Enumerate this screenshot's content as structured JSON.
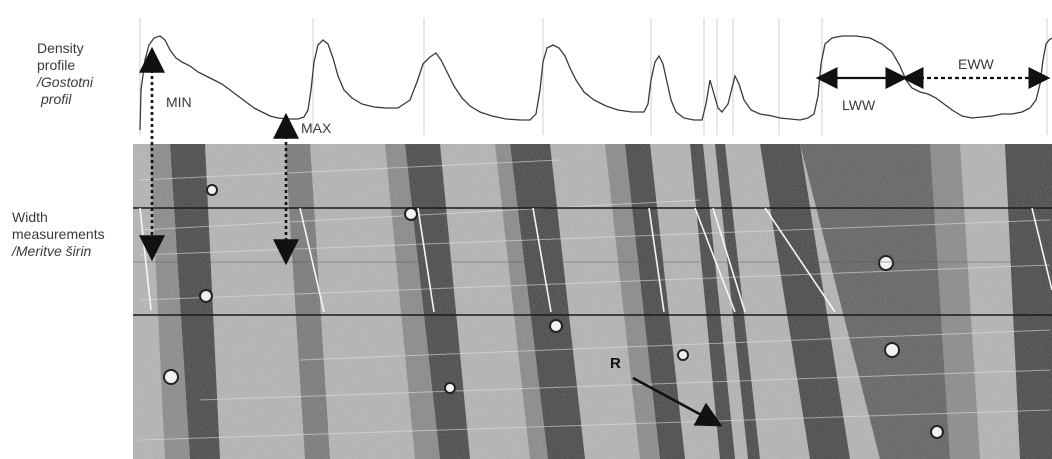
{
  "labels": {
    "density_1": "Density",
    "density_2": "profile",
    "density_3": "/Gostotni",
    "density_4": "profil",
    "width_1": "Width",
    "width_2": "measurements",
    "width_3": "/Meritve širin",
    "min": "MIN",
    "max": "MAX",
    "lww": "LWW",
    "eww": "EWW",
    "r": "R"
  },
  "colors": {
    "profile_line": "#3a3a3a",
    "boundary_line": "#d0d0d0",
    "latewood": "#3c3c3c",
    "earlywood": "#b4b4b4",
    "arrow": "#111111"
  },
  "icons": {
    "double_arrow_dotted": "dotted-double-arrow",
    "double_arrow_solid": "solid-double-arrow",
    "arrow": "arrow"
  }
}
